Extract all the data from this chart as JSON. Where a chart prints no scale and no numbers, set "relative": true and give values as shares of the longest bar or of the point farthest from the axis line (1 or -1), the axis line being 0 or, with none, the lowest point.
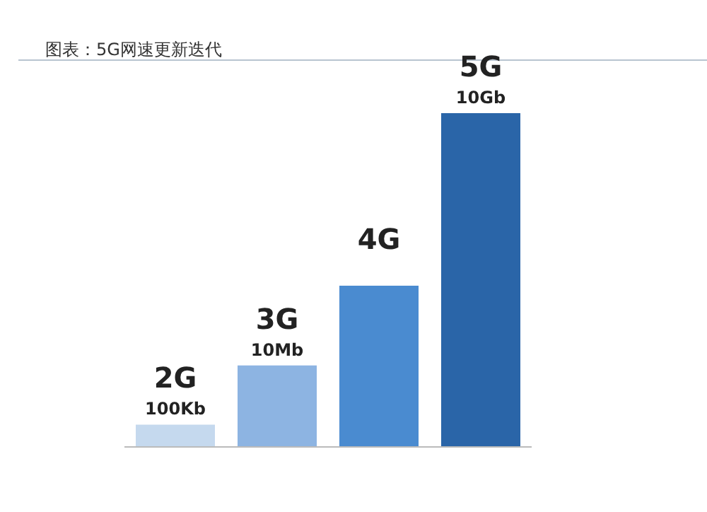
{
  "chart_data": {
    "type": "bar",
    "title": "图表：5G网速更新迭代",
    "relative": true,
    "categories": [
      "2G\n100Kb",
      "3G\n10Mb",
      "4G",
      "5G\n10Gb"
    ],
    "values": [
      0.067,
      0.244,
      0.483,
      1
    ],
    "colors": [
      "#c5d9ee",
      "#8db4e2",
      "#4a8bd0",
      "#2a65a8"
    ]
  }
}
